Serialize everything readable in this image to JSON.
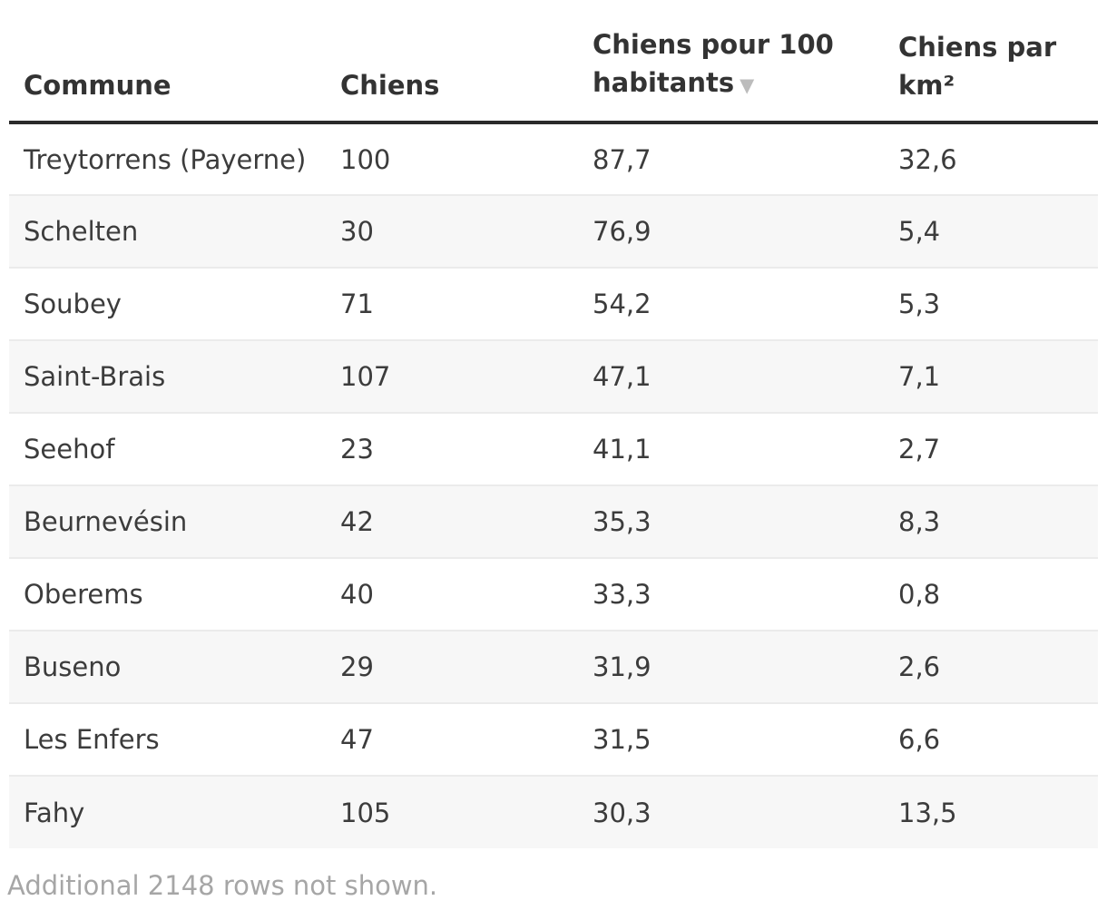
{
  "table": {
    "columns": [
      {
        "label": "Commune"
      },
      {
        "label": "Chiens"
      },
      {
        "label": "Chiens pour 100 habitants",
        "sort_indicator": "▼"
      },
      {
        "label": "Chiens par km²"
      }
    ],
    "rows": [
      {
        "commune": "Treytorrens (Payerne)",
        "chiens": "100",
        "per100": "87,7",
        "perkm2": "32,6"
      },
      {
        "commune": "Schelten",
        "chiens": "30",
        "per100": "76,9",
        "perkm2": "5,4"
      },
      {
        "commune": "Soubey",
        "chiens": "71",
        "per100": "54,2",
        "perkm2": "5,3"
      },
      {
        "commune": "Saint-Brais",
        "chiens": "107",
        "per100": "47,1",
        "perkm2": "7,1"
      },
      {
        "commune": "Seehof",
        "chiens": "23",
        "per100": "41,1",
        "perkm2": "2,7"
      },
      {
        "commune": "Beurnevésin",
        "chiens": "42",
        "per100": "35,3",
        "perkm2": "8,3"
      },
      {
        "commune": "Oberems",
        "chiens": "40",
        "per100": "33,3",
        "perkm2": "0,8"
      },
      {
        "commune": "Buseno",
        "chiens": "29",
        "per100": "31,9",
        "perkm2": "2,6"
      },
      {
        "commune": "Les Enfers",
        "chiens": "47",
        "per100": "31,5",
        "perkm2": "6,6"
      },
      {
        "commune": "Fahy",
        "chiens": "105",
        "per100": "30,3",
        "perkm2": "13,5"
      }
    ]
  },
  "footer": {
    "note": "Additional 2148 rows not shown."
  },
  "colors": {
    "header_text": "#333333",
    "header_rule": "#2b2b2b",
    "body_text": "#3c3c3c",
    "stripe": "#f7f7f7",
    "row_border": "#ebebeb",
    "sort_arrow": "#bcbcbc",
    "footer_text": "#a6a6a6"
  },
  "chart_data": {
    "type": "table",
    "columns": [
      "Commune",
      "Chiens",
      "Chiens pour 100 habitants",
      "Chiens par km²"
    ],
    "rows": [
      [
        "Treytorrens (Payerne)",
        100,
        87.7,
        32.6
      ],
      [
        "Schelten",
        30,
        76.9,
        5.4
      ],
      [
        "Soubey",
        71,
        54.2,
        5.3
      ],
      [
        "Saint-Brais",
        107,
        47.1,
        7.1
      ],
      [
        "Seehof",
        23,
        41.1,
        2.7
      ],
      [
        "Beurnevésin",
        42,
        35.3,
        8.3
      ],
      [
        "Oberems",
        40,
        33.3,
        0.8
      ],
      [
        "Buseno",
        29,
        31.9,
        2.6
      ],
      [
        "Les Enfers",
        47,
        31.5,
        6.6
      ],
      [
        "Fahy",
        105,
        30.3,
        13.5
      ]
    ],
    "sort": {
      "column": "Chiens pour 100 habitants",
      "direction": "desc"
    },
    "decimal_separator": ",",
    "note": "Additional 2148 rows not shown."
  }
}
